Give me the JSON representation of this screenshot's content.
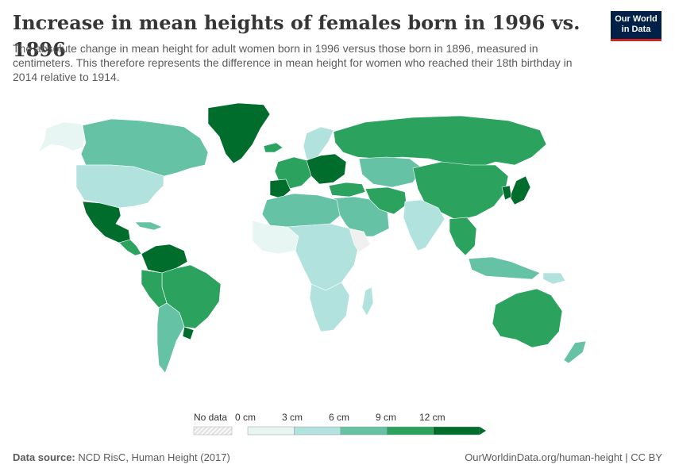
{
  "header": {
    "title": "Increase in mean heights of females born in 1996 vs. 1896",
    "subtitle": "The absolute change in mean height for adult women born in 1996 versus those born in 1896, measured in centimeters. This therefore represents the difference in mean height for women who reached their 18th birthday in 2014 relative to 1914."
  },
  "logo": {
    "line1": "Our World",
    "line2": "in Data"
  },
  "legend": {
    "no_data_label": "No data",
    "bins": [
      {
        "label": "0 cm",
        "color": "#e7f6f3"
      },
      {
        "label": "3 cm",
        "color": "#b2e2de"
      },
      {
        "label": "6 cm",
        "color": "#66c2a4"
      },
      {
        "label": "9 cm",
        "color": "#2ca25f"
      },
      {
        "label": "12 cm",
        "color": "#006d2c"
      }
    ]
  },
  "footer": {
    "source_label": "Data source:",
    "source_value": "NCD RisC, Human Height (2017)",
    "link": "OurWorldinData.org/human-height | CC BY"
  },
  "map_colors": {
    "ocean": "#ffffff",
    "border": "#ffffff",
    "very_low": "#e7f6f3",
    "low": "#b2e2de",
    "mid": "#66c2a4",
    "high": "#2ca25f",
    "very_high": "#006d2c",
    "no_data": "#f0f0f0"
  }
}
